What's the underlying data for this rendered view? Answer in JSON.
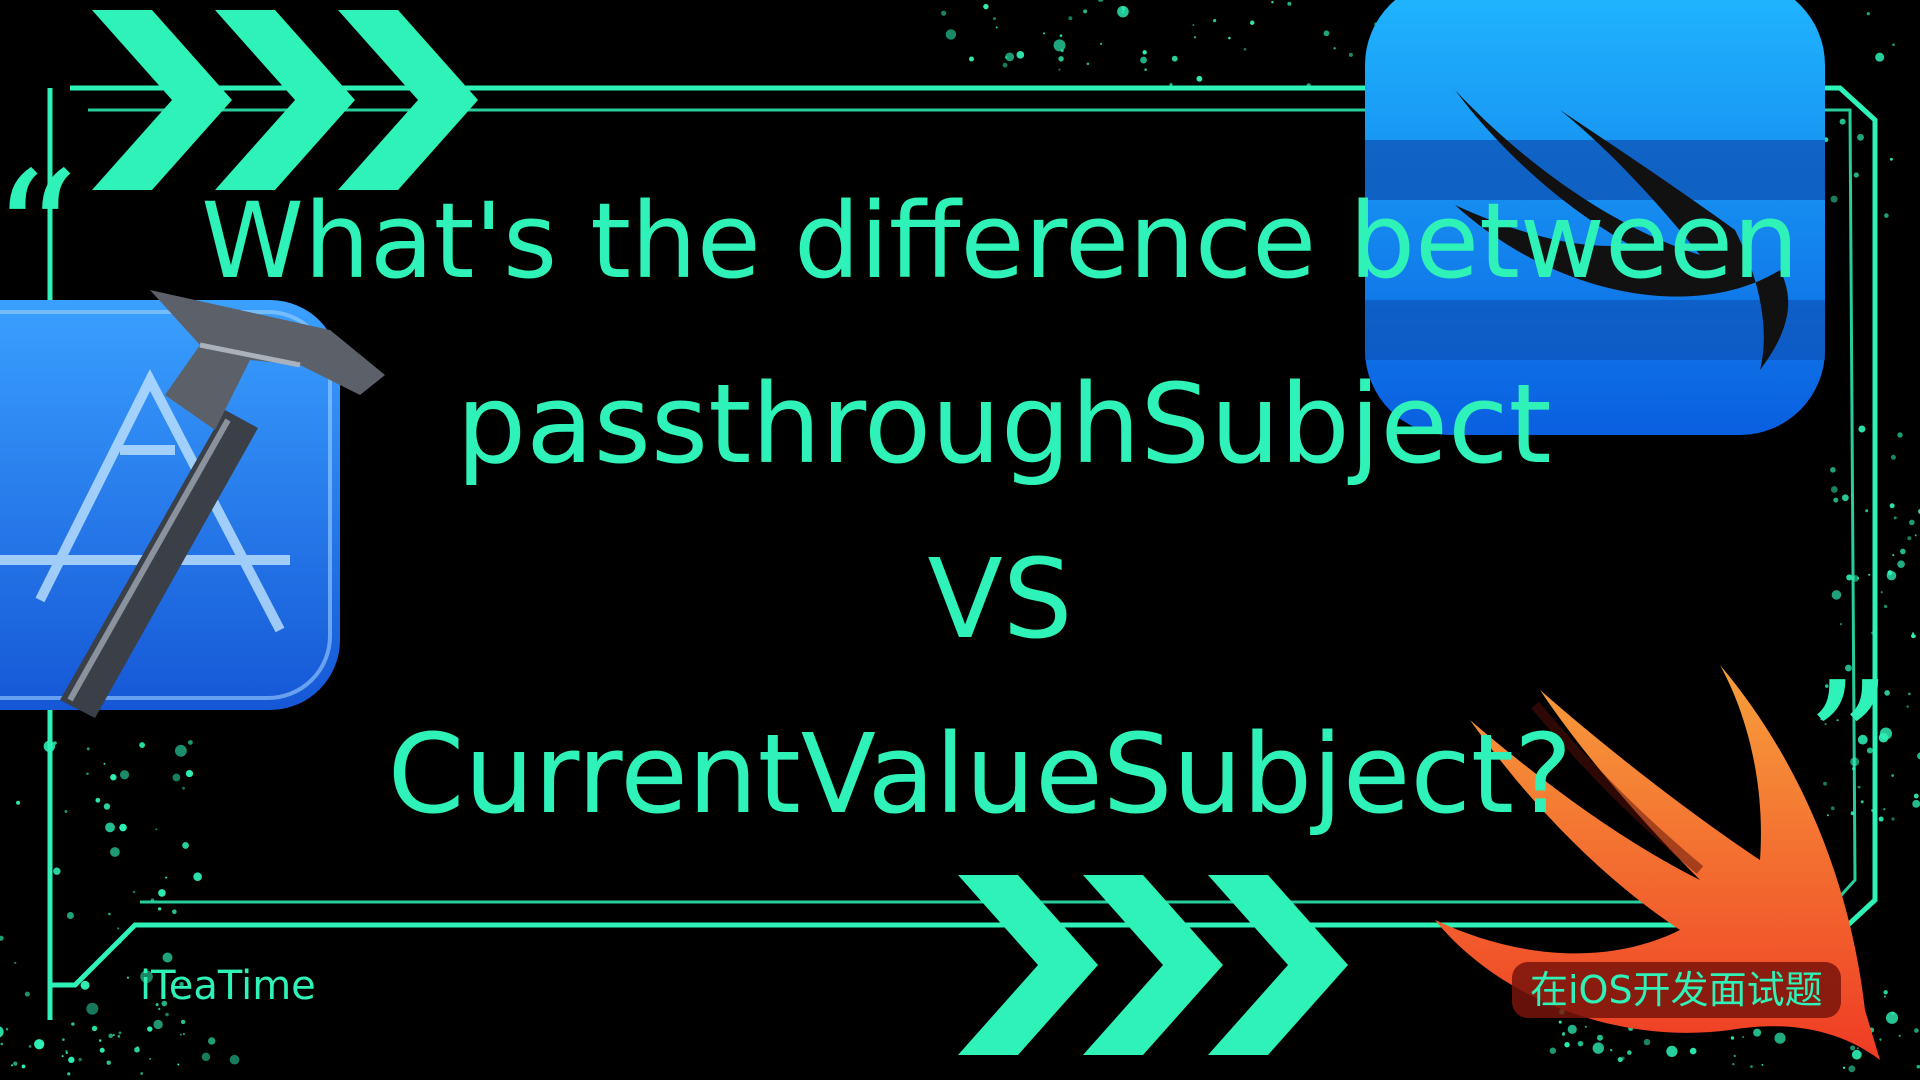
{
  "colors": {
    "accent": "#2ef2b7",
    "background": "#000000",
    "swift_logo_blue_top": "#1aa8ff",
    "swift_logo_blue_bottom": "#0a63e6",
    "swift_orange": "#f05a28",
    "xcode_blue": "#1f7ae6",
    "tag_background": "#7a140a",
    "tag_text": "#2ef2b7"
  },
  "headline": {
    "line1": "What's the difference between",
    "line2": "passthroughSubject",
    "line3": "VS",
    "line4": "CurrentValueSubject?",
    "open_quote": "“",
    "close_quote": "”"
  },
  "footer": {
    "brand": "iTeaTime",
    "tag": "在iOS开发面试题"
  },
  "icons": {
    "xcode": "xcode-icon",
    "swiftui": "swiftui-icon",
    "swift": "swift-icon",
    "chevrons": "chevron-right-icon"
  }
}
